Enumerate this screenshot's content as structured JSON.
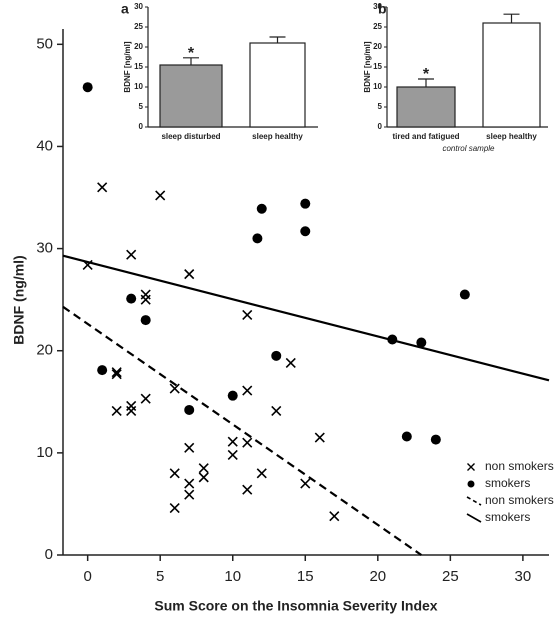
{
  "chart_data": [
    {
      "type": "scatter",
      "x_label": "Sum Score on the Insomnia Severity Index",
      "y_label": "BDNF (ng/ml)",
      "xlim": [
        -1.7,
        31.8
      ],
      "ylim": [
        0,
        51.5
      ],
      "xticks": [
        0,
        5,
        10,
        15,
        20,
        25,
        30
      ],
      "yticks": [
        0,
        10,
        20,
        30,
        40,
        50
      ],
      "legend": "lower right",
      "series": [
        {
          "name": "non smokers",
          "color": "#000000",
          "marker": "x",
          "x": [
            0,
            1,
            3,
            5,
            7,
            4,
            4,
            11,
            2,
            2,
            14,
            6,
            11,
            4,
            2,
            3,
            3,
            13,
            16,
            10,
            11,
            7,
            10,
            6,
            8,
            8,
            12,
            7,
            15,
            11,
            7,
            6,
            17
          ],
          "values": [
            28.4,
            36,
            29.4,
            35.2,
            27.5,
            25.5,
            25,
            23.5,
            17.7,
            17.9,
            18.8,
            16.3,
            16.1,
            15.3,
            14.1,
            14.6,
            14.1,
            14.1,
            11.5,
            11.1,
            11,
            10.5,
            9.8,
            8,
            8.5,
            7.6,
            8,
            7,
            7,
            6.4,
            5.9,
            4.6,
            3.8
          ]
        },
        {
          "name": "smokers",
          "color": "#000000",
          "marker": "dot",
          "x": [
            0,
            15,
            12,
            15,
            11.7,
            26,
            3,
            4,
            21,
            23,
            13,
            1,
            10,
            7,
            22,
            24
          ],
          "values": [
            45.8,
            34.4,
            33.9,
            31.7,
            31,
            25.5,
            25.1,
            23,
            21.1,
            20.8,
            19.5,
            18.1,
            15.6,
            14.2,
            11.6,
            11.3
          ]
        },
        {
          "name": "non smokers",
          "color": "#000000",
          "linestyle": "dashed",
          "x": [
            -1.7,
            23
          ],
          "values": [
            24.3,
            0
          ]
        },
        {
          "name": "smokers",
          "color": "#000000",
          "linestyle": "solid",
          "x": [
            -1.7,
            31.8
          ],
          "values": [
            29.3,
            17.1
          ]
        }
      ]
    },
    {
      "type": "bar",
      "panel_label": "a",
      "y_label": "BDNF [ng/ml]",
      "ylim": [
        0,
        30
      ],
      "yticks": [
        0,
        5,
        10,
        15,
        20,
        25,
        30
      ],
      "categories": [
        "sleep disturbed",
        "sleep healthy"
      ],
      "values": [
        15.5,
        21
      ],
      "errors": [
        1.8,
        1.5
      ],
      "colors": [
        "#9a9a9a",
        "#ffffff"
      ],
      "annotation": "*"
    },
    {
      "type": "bar",
      "panel_label": "b",
      "y_label": "BDNF [ng/ml]",
      "x_label": "control sample",
      "ylim": [
        0,
        30
      ],
      "yticks": [
        0,
        5,
        10,
        15,
        20,
        25,
        30
      ],
      "categories": [
        "tired and fatigued",
        "sleep healthy"
      ],
      "values": [
        10,
        26
      ],
      "errors": [
        2,
        2.2
      ],
      "colors": [
        "#9a9a9a",
        "#ffffff"
      ],
      "annotation": "*"
    }
  ]
}
